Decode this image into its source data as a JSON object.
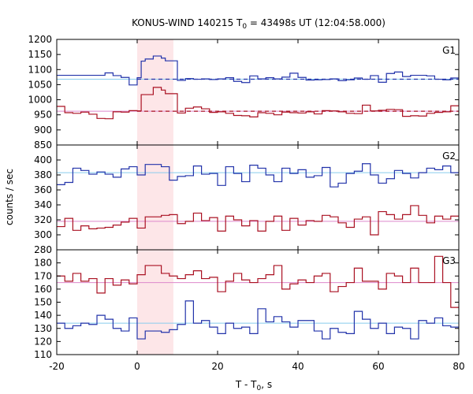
{
  "chart_data": {
    "type": "line",
    "title": "KONUS-WIND 140215 T",
    "title_sub": "0",
    "title_rest": " = 43498s UT (12:04:58.000)",
    "xlabel": "T - T",
    "xlabel_sub": "0",
    "xlabel_rest": ", s",
    "ylabel": "counts / sec",
    "xlim": [
      -20,
      80
    ],
    "xticks": [
      -20,
      0,
      20,
      40,
      60,
      80
    ],
    "highlight": {
      "x0": 0,
      "x1": 9,
      "color": "#fde6e8"
    },
    "bin_edges": [
      -20,
      -18,
      -16,
      -14,
      -12,
      -10,
      -8,
      -6,
      -4,
      -2,
      0,
      1,
      2,
      3,
      4,
      5,
      6,
      7,
      8,
      9,
      10,
      12,
      14,
      16,
      18,
      20,
      22,
      24,
      26,
      28,
      30,
      32,
      34,
      36,
      38,
      40,
      42,
      44,
      46,
      48,
      50,
      52,
      54,
      56,
      58,
      60,
      62,
      64,
      66,
      68,
      70,
      72,
      74,
      76,
      78,
      80
    ],
    "panels": [
      {
        "name": "G1",
        "ylim": [
          850,
          1200
        ],
        "yticks": [
          850,
          900,
          950,
          1000,
          1050,
          1100,
          1150,
          1200
        ],
        "series": [
          {
            "color": "#2233aa",
            "values": [
              1081,
              1081,
              1081,
              1081,
              1081,
              1081,
              1089,
              1080,
              1074,
              1049,
              1073,
              1128,
              1135,
              1135,
              1145,
              1145,
              1138,
              1129,
              1129,
              1129,
              1064,
              1070,
              1068,
              1069,
              1067,
              1069,
              1073,
              1061,
              1057,
              1079,
              1069,
              1073,
              1069,
              1075,
              1088,
              1074,
              1065,
              1066,
              1067,
              1069,
              1063,
              1066,
              1072,
              1068,
              1080,
              1058,
              1087,
              1092,
              1077,
              1081,
              1081,
              1079,
              1068,
              1066,
              1072
            ]
          },
          {
            "color": "#aa1122",
            "values": [
              978,
              957,
              955,
              959,
              952,
              938,
              937,
              960,
              959,
              964,
              963,
              1017,
              1017,
              1017,
              1041,
              1041,
              1032,
              1020,
              1020,
              1020,
              956,
              972,
              976,
              970,
              958,
              960,
              955,
              948,
              947,
              943,
              957,
              955,
              950,
              959,
              957,
              956,
              960,
              953,
              964,
              963,
              960,
              955,
              954,
              982,
              963,
              965,
              968,
              967,
              945,
              947,
              946,
              955,
              958,
              960,
              980
            ]
          }
        ],
        "levels": [
          {
            "color": "#88ccee",
            "value": 1068
          },
          {
            "color": "#dd88cc",
            "value": 962
          }
        ],
        "dashed": [
          {
            "color": "#2233aa",
            "value": 1068,
            "x0": 0,
            "x1": 80
          },
          {
            "color": "#aa1122",
            "value": 962,
            "x0": 0,
            "x1": 80
          }
        ]
      },
      {
        "name": "G2",
        "ylim": [
          280,
          420
        ],
        "yticks": [
          280,
          300,
          320,
          340,
          360,
          380,
          400
        ],
        "series": [
          {
            "color": "#2233aa",
            "values": [
              367,
              370,
              389,
              386,
              381,
              384,
              381,
              377,
              388,
              391,
              380,
              380,
              394,
              394,
              394,
              394,
              391,
              391,
              373,
              373,
              378,
              379,
              392,
              381,
              382,
              366,
              391,
              382,
              371,
              393,
              389,
              380,
              371,
              389,
              382,
              387,
              377,
              379,
              390,
              364,
              369,
              382,
              385,
              395,
              380,
              369,
              375,
              386,
              382,
              376,
              383,
              389,
              387,
              392,
              383
            ]
          },
          {
            "color": "#aa1122",
            "values": [
              311,
              322,
              306,
              312,
              308,
              309,
              310,
              313,
              317,
              322,
              309,
              309,
              324,
              324,
              324,
              324,
              326,
              326,
              327,
              327,
              315,
              318,
              329,
              319,
              323,
              305,
              325,
              320,
              312,
              319,
              305,
              318,
              325,
              306,
              322,
              313,
              319,
              318,
              326,
              324,
              316,
              310,
              321,
              324,
              300,
              331,
              327,
              321,
              327,
              339,
              326,
              316,
              325,
              321,
              325
            ]
          }
        ],
        "levels": [
          {
            "color": "#88ccee",
            "value": 383
          },
          {
            "color": "#dd88cc",
            "value": 318
          }
        ],
        "dashed": []
      },
      {
        "name": "G3",
        "ylim": [
          110,
          190
        ],
        "yticks": [
          110,
          120,
          130,
          140,
          150,
          160,
          170,
          180
        ],
        "series": [
          {
            "color": "#2233aa",
            "values": [
              134,
              130,
              132,
              134,
              133,
              140,
              137,
              130,
              128,
              138,
              122,
              122,
              128,
              128,
              128,
              128,
              127,
              127,
              129,
              129,
              133,
              151,
              134,
              136,
              131,
              126,
              134,
              130,
              131,
              126,
              145,
              135,
              139,
              135,
              131,
              136,
              136,
              128,
              122,
              130,
              127,
              126,
              143,
              137,
              130,
              134,
              126,
              131,
              130,
              122,
              136,
              134,
              138,
              132,
              131
            ]
          },
          {
            "color": "#aa1122",
            "values": [
              170,
              166,
              172,
              166,
              168,
              157,
              168,
              163,
              167,
              164,
              171,
              171,
              178,
              178,
              178,
              178,
              172,
              172,
              170,
              170,
              168,
              171,
              174,
              168,
              169,
              158,
              166,
              172,
              167,
              165,
              168,
              171,
              178,
              160,
              164,
              167,
              165,
              170,
              172,
              158,
              162,
              165,
              176,
              166,
              166,
              160,
              172,
              170,
              165,
              176,
              165,
              165,
              185,
              165,
              146
            ]
          }
        ],
        "levels": [
          {
            "color": "#88ccee",
            "value": 134
          },
          {
            "color": "#dd88cc",
            "value": 165
          }
        ],
        "dashed": []
      }
    ]
  }
}
